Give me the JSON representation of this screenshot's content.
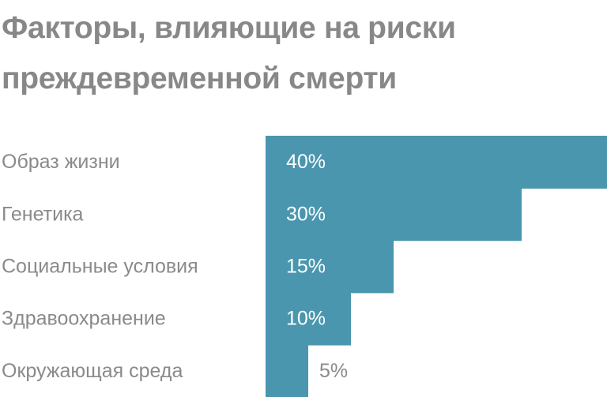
{
  "chart_data": {
    "type": "bar",
    "orientation": "horizontal",
    "title": "Факторы, влияющие на риски преждевременной смерти",
    "categories": [
      "Образ жизни",
      "Генетика",
      "Социальные условия",
      "Здравоохранение",
      "Окружающая среда"
    ],
    "values": [
      40,
      30,
      15,
      10,
      5
    ],
    "value_labels": [
      "40%",
      "30%",
      "15%",
      "10%",
      "5%"
    ],
    "unit": "%",
    "xlim": [
      0,
      40
    ],
    "grid": false,
    "legend": "none",
    "colors": {
      "bar": "#4a96ae",
      "label_inside": "#ffffff",
      "label_outside": "#8a8a8a",
      "category_text": "#8a8a8a",
      "title": "#888888"
    }
  }
}
